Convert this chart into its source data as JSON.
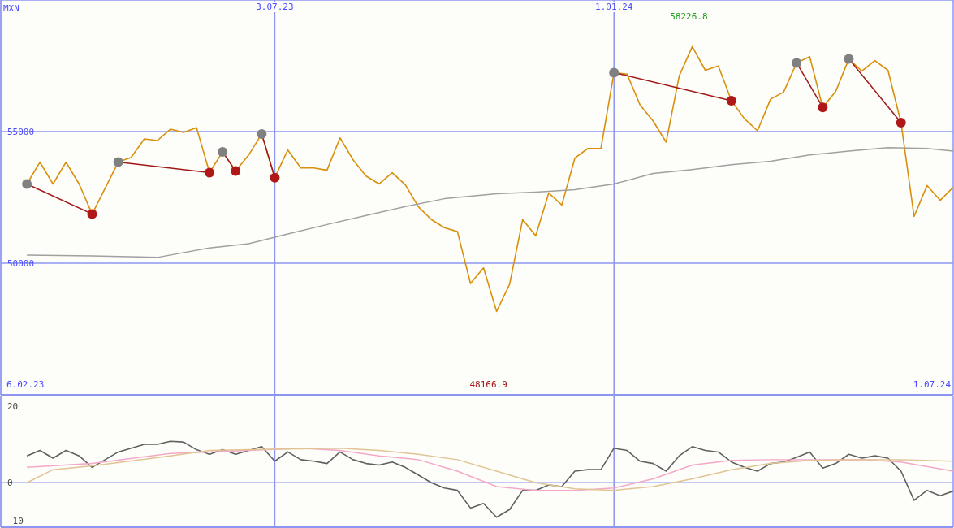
{
  "chart_data": [
    {
      "type": "line",
      "ylabel": "MXN",
      "x": [
        "2023-02-20",
        "2023-02-27",
        "2023-03-06",
        "2023-03-13",
        "2023-03-20",
        "2023-03-27",
        "2023-04-03",
        "2023-04-10",
        "2023-04-17",
        "2023-04-24",
        "2023-05-01",
        "2023-05-08",
        "2023-05-15",
        "2023-05-22",
        "2023-05-29",
        "2023-06-05",
        "2023-06-12",
        "2023-06-19",
        "2023-06-26",
        "2023-07-03",
        "2023-07-10",
        "2023-07-17",
        "2023-07-24",
        "2023-07-31",
        "2023-08-07",
        "2023-08-14",
        "2023-08-21",
        "2023-08-28",
        "2023-09-04",
        "2023-09-11",
        "2023-09-18",
        "2023-09-25",
        "2023-10-02",
        "2023-10-09",
        "2023-10-16",
        "2023-10-23",
        "2023-10-30",
        "2023-11-06",
        "2023-11-13",
        "2023-11-20",
        "2023-11-27",
        "2023-12-04",
        "2023-12-11",
        "2023-12-18",
        "2023-12-25",
        "2024-01-01",
        "2024-01-08",
        "2024-01-15",
        "2024-01-22",
        "2024-01-29",
        "2024-02-05",
        "2024-02-12",
        "2024-02-19",
        "2024-02-26",
        "2024-03-04",
        "2024-03-11",
        "2024-03-18",
        "2024-03-25",
        "2024-04-01",
        "2024-04-08",
        "2024-04-15",
        "2024-04-22",
        "2024-04-29",
        "2024-05-06",
        "2024-05-13",
        "2024-05-20",
        "2024-05-27",
        "2024-06-03",
        "2024-06-10",
        "2024-06-17",
        "2024-06-24",
        "2024-07-01"
      ],
      "series": [
        {
          "type": "line",
          "color": "#d8900c",
          "values": [
            53010,
            53840,
            53010,
            53840,
            53010,
            51870,
            52850,
            53840,
            54020,
            54720,
            54660,
            55090,
            54970,
            55150,
            53440,
            54230,
            53500,
            54110,
            54910,
            53250,
            54300,
            53620,
            53620,
            53530,
            54760,
            53930,
            53310,
            53010,
            53440,
            52980,
            52150,
            51660,
            51350,
            51200,
            49230,
            49820,
            48166.9,
            49200,
            51660,
            51040,
            52670,
            52210,
            53990,
            54360,
            54360,
            57240,
            57180,
            56010,
            55400,
            54600,
            57120,
            58226.8,
            57330,
            57490,
            56170,
            55490,
            55030,
            56230,
            56500,
            57610,
            57850,
            55920,
            56530,
            57760,
            57300,
            57700,
            57330,
            55340,
            51780,
            52950,
            52390,
            52880
          ]
        },
        {
          "type": "line",
          "color": "#a0a0a0",
          "x": [
            "2023-02-20",
            "2023-03-27",
            "2023-05-01",
            "2023-05-29",
            "2023-06-19",
            "2023-07-10",
            "2023-07-31",
            "2023-08-21",
            "2023-09-11",
            "2023-10-02",
            "2023-10-30",
            "2023-11-20",
            "2023-12-11",
            "2024-01-01",
            "2024-01-22",
            "2024-02-12",
            "2024-03-04",
            "2024-03-25",
            "2024-04-15",
            "2024-05-06",
            "2024-05-27",
            "2024-06-17",
            "2024-07-01"
          ],
          "values": [
            50310,
            50280,
            50220,
            50580,
            50740,
            51110,
            51470,
            51810,
            52150,
            52450,
            52640,
            52700,
            52790,
            53010,
            53410,
            53560,
            53740,
            53870,
            54110,
            54260,
            54390,
            54360,
            54260
          ]
        },
        {
          "type": "line",
          "color": "#a01818",
          "x": [
            "2023-02-20",
            "2023-03-27"
          ],
          "values": [
            53010,
            51870
          ]
        },
        {
          "type": "line",
          "color": "#a01818",
          "x": [
            "2023-04-10",
            "2023-05-29"
          ],
          "values": [
            53840,
            53440
          ]
        },
        {
          "type": "line",
          "color": "#a01818",
          "x": [
            "2023-06-05",
            "2023-06-12"
          ],
          "values": [
            54230,
            53500
          ]
        },
        {
          "type": "line",
          "color": "#a01818",
          "x": [
            "2023-06-26",
            "2023-07-03"
          ],
          "values": [
            54910,
            53250
          ]
        },
        {
          "type": "line",
          "color": "#a01818",
          "x": [
            "2024-01-01",
            "2024-03-04"
          ],
          "values": [
            57240,
            56170
          ]
        },
        {
          "type": "line",
          "color": "#a01818",
          "x": [
            "2024-04-08",
            "2024-04-22"
          ],
          "values": [
            57610,
            55920
          ]
        },
        {
          "type": "line",
          "color": "#a01818",
          "x": [
            "2024-05-06",
            "2024-06-03"
          ],
          "values": [
            57760,
            55340
          ]
        },
        {
          "type": "scatter",
          "color": "#808080",
          "x": [
            "2023-02-20",
            "2023-04-10",
            "2023-06-05",
            "2023-06-26",
            "2024-01-01",
            "2024-04-08",
            "2024-05-06"
          ],
          "values": [
            53010,
            53840,
            54230,
            54910,
            57240,
            57610,
            57760
          ]
        },
        {
          "type": "scatter",
          "color": "#b01818",
          "x": [
            "2023-03-27",
            "2023-05-29",
            "2023-06-12",
            "2023-07-03",
            "2024-03-04",
            "2024-04-22",
            "2024-06-03"
          ],
          "values": [
            51870,
            53440,
            53500,
            53250,
            56170,
            55920,
            55340
          ]
        }
      ],
      "xlim": [
        "2023-02-06",
        "2024-07-01"
      ],
      "xticks": [
        {
          "value": "2023-07-03",
          "label": "3.07.23"
        },
        {
          "value": "2024-01-01",
          "label": "1.01.24"
        }
      ],
      "ylim": [
        45000,
        60000
      ],
      "yticks": [
        50000,
        55000
      ],
      "grid": true,
      "annotations": [
        "6.02.23",
        "1.07.24",
        "58226.8",
        "48166.9"
      ]
    },
    {
      "type": "line",
      "x": [
        "2023-02-20",
        "2023-02-27",
        "2023-03-06",
        "2023-03-13",
        "2023-03-20",
        "2023-03-27",
        "2023-04-03",
        "2023-04-10",
        "2023-04-17",
        "2023-04-24",
        "2023-05-01",
        "2023-05-08",
        "2023-05-15",
        "2023-05-22",
        "2023-05-29",
        "2023-06-05",
        "2023-06-12",
        "2023-06-19",
        "2023-06-26",
        "2023-07-03",
        "2023-07-10",
        "2023-07-17",
        "2023-07-24",
        "2023-07-31",
        "2023-08-07",
        "2023-08-14",
        "2023-08-21",
        "2023-08-28",
        "2023-09-04",
        "2023-09-11",
        "2023-09-18",
        "2023-09-25",
        "2023-10-02",
        "2023-10-09",
        "2023-10-16",
        "2023-10-23",
        "2023-10-30",
        "2023-11-06",
        "2023-11-13",
        "2023-11-20",
        "2023-11-27",
        "2023-12-04",
        "2023-12-11",
        "2023-12-18",
        "2023-12-25",
        "2024-01-01",
        "2024-01-08",
        "2024-01-15",
        "2024-01-22",
        "2024-01-29",
        "2024-02-05",
        "2024-02-12",
        "2024-02-19",
        "2024-02-26",
        "2024-03-04",
        "2024-03-11",
        "2024-03-18",
        "2024-03-25",
        "2024-04-01",
        "2024-04-08",
        "2024-04-15",
        "2024-04-22",
        "2024-04-29",
        "2024-05-06",
        "2024-05-13",
        "2024-05-20",
        "2024-05-27",
        "2024-06-03",
        "2024-06-10",
        "2024-06-17",
        "2024-06-24",
        "2024-07-01"
      ],
      "series": [
        {
          "color": "#606060",
          "values": [
            7,
            8.4,
            6.4,
            8.4,
            7,
            4,
            6,
            8,
            9,
            10,
            10,
            10.8,
            10.6,
            8.6,
            7.4,
            8.6,
            7.4,
            8.4,
            9.4,
            5.6,
            8,
            6,
            5.6,
            5,
            8,
            6,
            5,
            4.6,
            5.4,
            4,
            2,
            0,
            -1.4,
            -2,
            -6.6,
            -5.4,
            -9,
            -7,
            -2,
            -2,
            -0.6,
            -1,
            3,
            3.4,
            3.4,
            9,
            8.4,
            5.6,
            5,
            3,
            7,
            9.4,
            8.4,
            8,
            5.4,
            4,
            3,
            5,
            5.4,
            6.6,
            8,
            3.8,
            5,
            7.4,
            6.4,
            7,
            6.4,
            3,
            -4.6,
            -2,
            -3.4,
            -2.2
          ]
        },
        {
          "color": "#f4a8c8",
          "x": [
            "2023-02-20",
            "2023-03-27",
            "2023-05-08",
            "2023-06-19",
            "2023-07-17",
            "2023-08-07",
            "2023-08-28",
            "2023-09-18",
            "2023-10-09",
            "2023-10-30",
            "2023-11-20",
            "2023-12-11",
            "2024-01-01",
            "2024-01-22",
            "2024-02-12",
            "2024-03-04",
            "2024-03-25",
            "2024-04-15",
            "2024-05-13",
            "2024-06-03",
            "2024-07-01"
          ],
          "values": [
            4,
            5,
            7.6,
            8.4,
            9,
            8.4,
            7,
            6,
            3,
            -1,
            -2,
            -2,
            -1.4,
            1,
            4.6,
            5.8,
            6,
            6,
            6,
            5.4,
            3
          ]
        },
        {
          "color": "#e0c494",
          "x": [
            "2023-02-20",
            "2023-03-06",
            "2023-03-27",
            "2023-05-08",
            "2023-05-29",
            "2023-06-19",
            "2023-08-07",
            "2023-08-28",
            "2023-09-18",
            "2023-10-09",
            "2023-10-30",
            "2023-11-20",
            "2023-12-11",
            "2024-01-01",
            "2024-01-22",
            "2024-02-12",
            "2024-03-04",
            "2024-03-25",
            "2024-04-15",
            "2024-05-13",
            "2024-06-03",
            "2024-07-01"
          ],
          "values": [
            0,
            3.4,
            4.4,
            7,
            8.4,
            8.6,
            9,
            8.4,
            7.4,
            6,
            3,
            0,
            -1.6,
            -2,
            -1,
            1,
            3.4,
            5,
            5.8,
            6,
            6,
            5.6
          ]
        }
      ],
      "xlim": [
        "2023-02-06",
        "2024-07-01"
      ],
      "xticks": [
        {
          "value": "2023-07-03",
          "label": null
        },
        {
          "value": "2024-01-01",
          "label": null
        }
      ],
      "ylim": [
        -11.6,
        22.7
      ],
      "yticks": [
        20,
        0,
        -10
      ],
      "grid": "x",
      "tick_labels": "y",
      "ref_lines": [
        {
          "axis": "y",
          "value": 0,
          "color": "#8c96f0"
        }
      ]
    }
  ]
}
